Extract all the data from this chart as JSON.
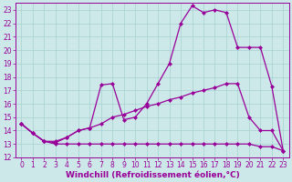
{
  "xlabel": "Windchill (Refroidissement éolien,°C)",
  "background_color": "#cce8e8",
  "grid_color": "#a8d0d0",
  "line_color": "#990099",
  "xlim": [
    -0.5,
    23.5
  ],
  "ylim": [
    12,
    23.5
  ],
  "xticks": [
    0,
    1,
    2,
    3,
    4,
    5,
    6,
    7,
    8,
    9,
    10,
    11,
    12,
    13,
    14,
    15,
    16,
    17,
    18,
    19,
    20,
    21,
    22,
    23
  ],
  "yticks": [
    12,
    13,
    14,
    15,
    16,
    17,
    18,
    19,
    20,
    21,
    22,
    23
  ],
  "line1_x": [
    0,
    1,
    2,
    3,
    4,
    5,
    6,
    7,
    8,
    9,
    10,
    11,
    12,
    13,
    14,
    15,
    16,
    17,
    18,
    19,
    20,
    21,
    22,
    23
  ],
  "line1_y": [
    14.5,
    13.8,
    13.2,
    13.1,
    13.5,
    14.0,
    14.2,
    17.4,
    17.5,
    14.8,
    15.0,
    16.0,
    17.5,
    19.0,
    22.0,
    23.3,
    22.8,
    23.0,
    22.8,
    20.2,
    20.2,
    20.2,
    17.3,
    12.5
  ],
  "line2_x": [
    0,
    1,
    2,
    3,
    4,
    5,
    6,
    7,
    8,
    9,
    10,
    11,
    12,
    13,
    14,
    15,
    16,
    17,
    18,
    19,
    20,
    21,
    22,
    23
  ],
  "line2_y": [
    14.5,
    13.8,
    13.2,
    13.2,
    13.5,
    14.0,
    14.2,
    14.5,
    15.0,
    15.2,
    15.5,
    15.8,
    16.0,
    16.3,
    16.5,
    16.8,
    17.0,
    17.2,
    17.5,
    17.5,
    15.0,
    14.0,
    14.0,
    12.5
  ],
  "line3_x": [
    0,
    1,
    2,
    3,
    4,
    5,
    6,
    7,
    8,
    9,
    10,
    11,
    12,
    13,
    14,
    15,
    16,
    17,
    18,
    19,
    20,
    21,
    22,
    23
  ],
  "line3_y": [
    14.5,
    13.8,
    13.2,
    13.0,
    13.0,
    13.0,
    13.0,
    13.0,
    13.0,
    13.0,
    13.0,
    13.0,
    13.0,
    13.0,
    13.0,
    13.0,
    13.0,
    13.0,
    13.0,
    13.0,
    13.0,
    12.8,
    12.8,
    12.5
  ],
  "marker": "D",
  "markersize": 2.5,
  "linewidth": 0.9,
  "tick_fontsize": 5.5,
  "label_fontsize": 6.5
}
